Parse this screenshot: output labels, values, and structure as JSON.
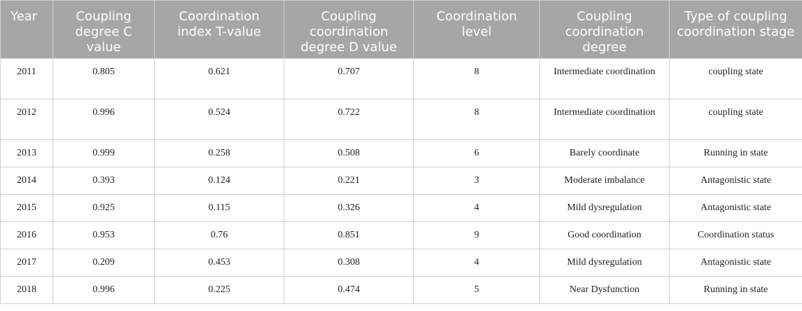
{
  "table": {
    "header": [
      "Year",
      "Coupling degree C value",
      "Coordination index T-value",
      "Coupling coordination degree D value",
      "Coordination level",
      "Coupling coordination degree",
      "Type of coupling coordination stage"
    ],
    "rows": [
      [
        "2011",
        "0.805",
        "0.621",
        "0.707",
        "8",
        "Intermediate coordination",
        "coupling state"
      ],
      [
        "2012",
        "0.996",
        "0.524",
        "0.722",
        "8",
        "Intermediate coordination",
        "coupling state"
      ],
      [
        "2013",
        "0.999",
        "0.258",
        "0.508",
        "6",
        "Barely coordinate",
        "Running in state"
      ],
      [
        "2014",
        "0.393",
        "0.124",
        "0.221",
        "3",
        "Moderate imbalance",
        "Antagonistic state"
      ],
      [
        "2015",
        "0.925",
        "0.115",
        "0.326",
        "4",
        "Mild dysregulation",
        "Antagonistic state"
      ],
      [
        "2016",
        "0.953",
        "0.76",
        "0.851",
        "9",
        "Good coordination",
        "Coordination status"
      ],
      [
        "2017",
        "0.209",
        "0.453",
        "0.308",
        "4",
        "Mild dysregulation",
        "Antagonistic state"
      ],
      [
        "2018",
        "0.996",
        "0.225",
        "0.474",
        "5",
        "Near Dysfunction",
        "Running in state"
      ]
    ]
  }
}
